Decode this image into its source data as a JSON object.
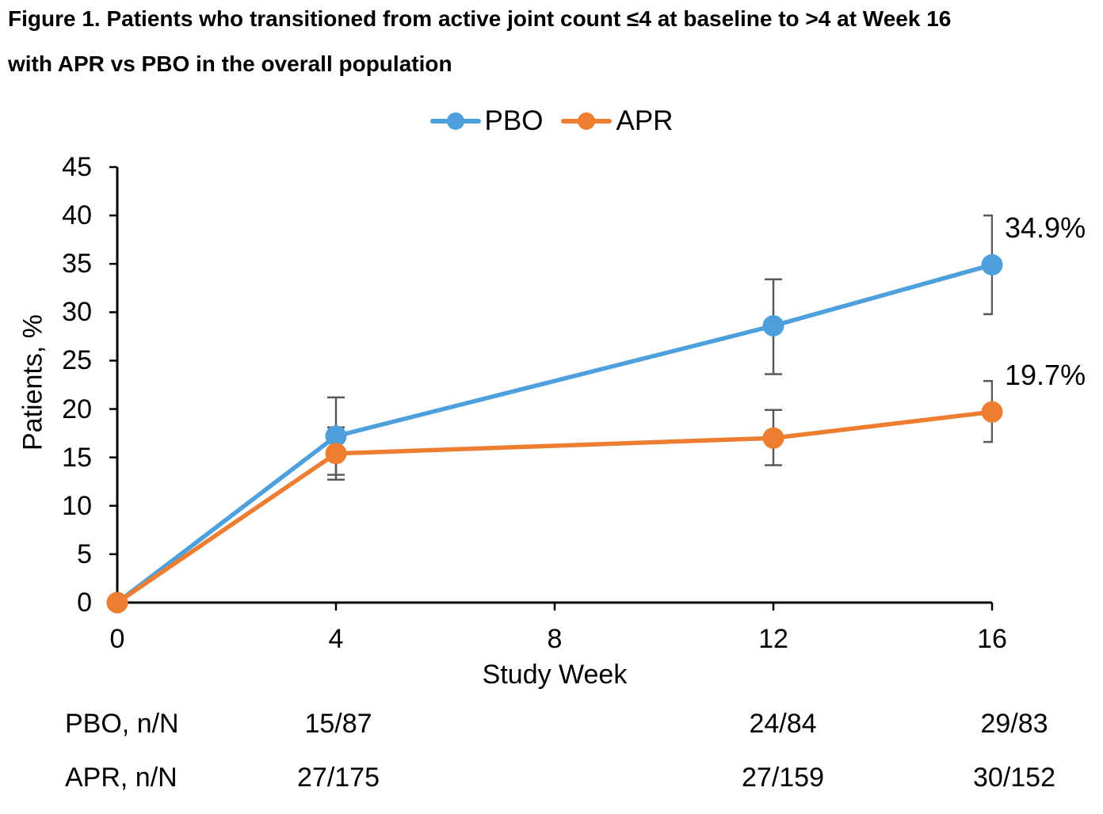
{
  "title": {
    "line1": "Figure 1. Patients who transitioned from active joint count ≤4 at baseline to >4 at Week 16",
    "line2": "with APR vs PBO in the overall population"
  },
  "legend": {
    "items": [
      {
        "label": "PBO",
        "color": "#4DA0DB"
      },
      {
        "label": "APR",
        "color": "#ED7D31"
      }
    ]
  },
  "chart_data": {
    "type": "line",
    "title": "Figure 1. Patients who transitioned from active joint count ≤4 at baseline to >4 at Week 16 with APR vs PBO in the overall population",
    "x": [
      0,
      4,
      12,
      16
    ],
    "xticks": [
      0,
      4,
      8,
      12,
      16
    ],
    "xlim": [
      0,
      16
    ],
    "xlabel": "Study Week",
    "ylabel": "Patients, %",
    "ylim": [
      0,
      45
    ],
    "ytick_step": 5,
    "grid": false,
    "legend_position": "top",
    "error_bar_color": "#595959",
    "axis_color": "#000000",
    "series": [
      {
        "name": "PBO",
        "color": "#4DA0DB",
        "values": [
          0,
          17.2,
          28.6,
          34.9
        ],
        "err_low": [
          null,
          13.2,
          23.6,
          29.8
        ],
        "err_high": [
          null,
          21.2,
          33.4,
          40.0
        ]
      },
      {
        "name": "APR",
        "color": "#ED7D31",
        "values": [
          0,
          15.4,
          17.0,
          19.7
        ],
        "err_low": [
          null,
          12.7,
          14.2,
          16.6
        ],
        "err_high": [
          null,
          18.1,
          19.9,
          22.9
        ]
      }
    ],
    "point_labels": [
      {
        "text": "34.9%",
        "series": "PBO",
        "week": 16
      },
      {
        "text": "19.7%",
        "series": "APR",
        "week": 16
      }
    ]
  },
  "table": {
    "value_weeks": [
      4,
      12,
      16
    ],
    "rows": [
      {
        "label": "PBO, n/N",
        "values": [
          "15/87",
          "24/84",
          "29/83"
        ]
      },
      {
        "label": "APR, n/N",
        "values": [
          "27/175",
          "27/159",
          "30/152"
        ]
      }
    ]
  }
}
